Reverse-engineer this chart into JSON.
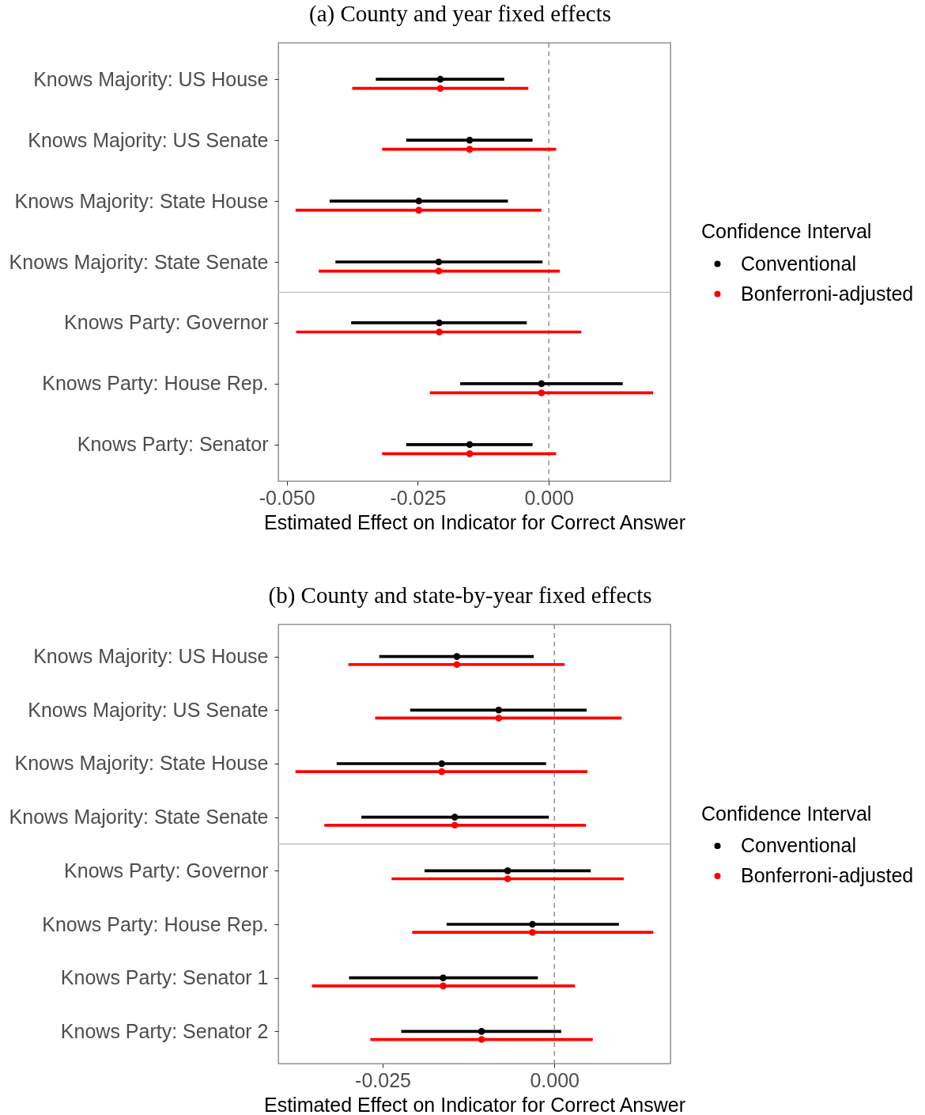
{
  "chart_data": [
    {
      "type": "scatter",
      "title": "(a) County and year fixed effects",
      "xlabel": "Estimated Effect on Indicator for Correct Answer",
      "orientation": "horizontal",
      "categories": [
        "Knows Majority: US House",
        "Knows Majority: US Senate",
        "Knows Majority: State House",
        "Knows Majority: State Senate",
        "Knows Party: Governor",
        "Knows Party: House Rep.",
        "Knows Party: Senator"
      ],
      "xlim": [
        -0.0516,
        0.0232
      ],
      "xticks": [
        {
          "value": -0.05,
          "label": "-0.050"
        },
        {
          "value": -0.025,
          "label": "-0.025"
        },
        {
          "value": 0,
          "label": "0.000"
        }
      ],
      "series": [
        {
          "name": "Conventional",
          "color": "#000000",
          "values": [
            -0.0207,
            -0.0151,
            -0.0248,
            -0.021,
            -0.0209,
            -0.0014,
            -0.0151
          ],
          "errors": [
            [
              -0.033,
              -0.0085
            ],
            [
              -0.0272,
              -0.0031
            ],
            [
              -0.0418,
              -0.0078
            ],
            [
              -0.0407,
              -0.0012
            ],
            [
              -0.0377,
              -0.0042
            ],
            [
              -0.0169,
              0.0141
            ],
            [
              -0.0272,
              -0.0031
            ]
          ]
        },
        {
          "name": "Bonferroni-adjusted",
          "color": "#ff0000",
          "values": [
            -0.0207,
            -0.0151,
            -0.0248,
            -0.021,
            -0.0209,
            -0.0014,
            -0.0151
          ],
          "errors": [
            [
              -0.0375,
              -0.0039
            ],
            [
              -0.0318,
              0.0014
            ],
            [
              -0.0483,
              -0.0014
            ],
            [
              -0.0439,
              0.0021
            ],
            [
              -0.0482,
              0.0062
            ],
            [
              -0.0227,
              0.0199
            ],
            [
              -0.0318,
              0.0014
            ]
          ]
        }
      ],
      "legend_title": "Confidence Interval",
      "legend": "right",
      "grid": false,
      "marker": "circle",
      "line_style": "solid",
      "ref_lines": [
        {
          "axis": "x",
          "value": 0,
          "color": "#7f7f7f",
          "line_style": "dashed"
        },
        {
          "axis": "y",
          "value": "Knows Party: Governor",
          "color": "#bebebe",
          "line_style": "solid"
        }
      ]
    },
    {
      "type": "scatter",
      "title": "(b) County and state-by-year fixed effects",
      "xlabel": "Estimated Effect on Indicator for Correct Answer",
      "orientation": "horizontal",
      "categories": [
        "Knows Majority: US House",
        "Knows Majority: US Senate",
        "Knows Majority: State House",
        "Knows Majority: State Senate",
        "Knows Party: Governor",
        "Knows Party: House Rep.",
        "Knows Party: Senator 1",
        "Knows Party: Senator 2"
      ],
      "xlim": [
        -0.0402,
        0.0169
      ],
      "xticks": [
        {
          "value": -0.025,
          "label": "-0.025"
        },
        {
          "value": 0,
          "label": "0.000"
        }
      ],
      "series": [
        {
          "name": "Conventional",
          "color": "#000000",
          "values": [
            -0.0142,
            -0.0081,
            -0.0164,
            -0.0145,
            -0.0068,
            -0.0032,
            -0.0162,
            -0.0106
          ],
          "errors": [
            [
              -0.0255,
              -0.003
            ],
            [
              -0.021,
              0.0047
            ],
            [
              -0.0317,
              -0.0012
            ],
            [
              -0.0281,
              -0.0008
            ],
            [
              -0.0189,
              0.0053
            ],
            [
              -0.0157,
              0.0094
            ],
            [
              -0.0299,
              -0.0024
            ],
            [
              -0.0223,
              0.001
            ]
          ]
        },
        {
          "name": "Bonferroni-adjusted",
          "color": "#ff0000",
          "values": [
            -0.0142,
            -0.0081,
            -0.0164,
            -0.0145,
            -0.0068,
            -0.0032,
            -0.0162,
            -0.0106
          ],
          "errors": [
            [
              -0.03,
              0.0015
            ],
            [
              -0.0261,
              0.0098
            ],
            [
              -0.0377,
              0.0048
            ],
            [
              -0.0335,
              0.0046
            ],
            [
              -0.0237,
              0.0101
            ],
            [
              -0.0207,
              0.0144
            ],
            [
              -0.0353,
              0.003
            ],
            [
              -0.0268,
              0.0056
            ]
          ]
        }
      ],
      "legend_title": "Confidence Interval",
      "legend": "right",
      "grid": false,
      "marker": "circle",
      "line_style": "solid",
      "ref_lines": [
        {
          "axis": "x",
          "value": 0,
          "color": "#7f7f7f",
          "line_style": "dashed"
        },
        {
          "axis": "y",
          "value": "Knows Party: Governor",
          "color": "#bebebe",
          "line_style": "solid"
        }
      ]
    }
  ]
}
